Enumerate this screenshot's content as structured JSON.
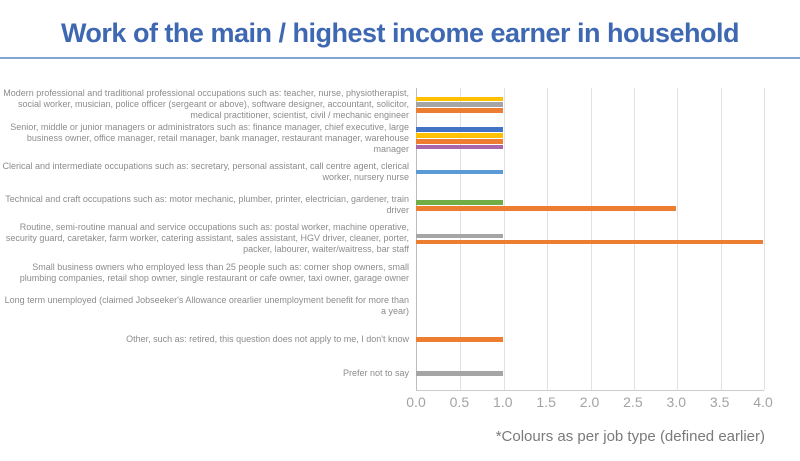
{
  "title": {
    "text": "Work of the main / highest income earner in household"
  },
  "footnote": "*Colours as per job type (defined earlier)",
  "palette": {
    "gold": "#FFC000",
    "gray": "#A5A5A5",
    "orange": "#ED7D31",
    "blue": "#4472C4",
    "purple": "#A767A8",
    "light_blue": "#5B9BD5",
    "green": "#70AD47"
  },
  "theme": {
    "title_color": "#3E68B1",
    "underline_color": "#82A5D6",
    "label_color": "#8C8C8C",
    "tick_color": "#A3A3A3",
    "gridline_color": "#E1E1E1",
    "footnote_color": "#7A7A7A"
  },
  "chart_data": {
    "type": "bar",
    "orientation": "horizontal",
    "title": "Work of the main / highest income earner in household",
    "xlabel": "",
    "ylabel": "",
    "xlim": [
      0,
      4
    ],
    "x_tick_labels": [
      "0.0",
      "0.5",
      "1.0",
      "1.5",
      "2.0",
      "2.5",
      "3.0",
      "3.5",
      "4.0"
    ],
    "grid": true,
    "legend": "none",
    "footnote": "*Colours as per job type (defined earlier)",
    "categories": [
      "Modern professional and traditional professional occupations such as: teacher, nurse, physiotherapist, social worker, musician, police officer (sergeant or above), software designer, accountant, solicitor, medical practitioner, scientist, civil / mechanic engineer",
      "Senior, middle or junior managers or administrators such as: finance manager, chief executive, large business owner, office manager, retail manager, bank manager, restaurant manager, warehouse manager",
      "Clerical and intermediate occupations such as: secretary, personal assistant, call centre agent, clerical worker, nursery nurse",
      "Technical and craft occupations such as: motor mechanic, plumber, printer, electrician, gardener, train driver",
      "Routine, semi-routine manual and service occupations such as: postal worker, machine operative, security guard, caretaker, farm worker, catering assistant, sales assistant, HGV driver, cleaner, porter, packer, labourer, waiter/waitress, bar staff",
      "Small business owners who employed less than 25 people such as: corner shop owners, small plumbing companies, retail shop owner, single restaurant or cafe owner, taxi owner, garage owner",
      "Long term unemployed (claimed Jobseeker's Allowance orearlier unemployment benefit for more than a year)",
      "Other, such as: retired, this question does not apply to me, I don't know",
      "Prefer not to say"
    ],
    "rows": [
      {
        "category_index": 0,
        "bars": [
          {
            "color_name": "gold",
            "value": 1.0
          },
          {
            "color_name": "gray",
            "value": 1.0
          },
          {
            "color_name": "orange",
            "value": 1.0
          }
        ]
      },
      {
        "category_index": 1,
        "bars": [
          {
            "color_name": "blue",
            "value": 1.0
          },
          {
            "color_name": "gold",
            "value": 1.0
          },
          {
            "color_name": "orange",
            "value": 1.0
          },
          {
            "color_name": "purple",
            "value": 1.0
          }
        ]
      },
      {
        "category_index": 2,
        "bars": [
          {
            "color_name": "light_blue",
            "value": 1.0
          }
        ]
      },
      {
        "category_index": 3,
        "bars": [
          {
            "color_name": "green",
            "value": 1.0
          },
          {
            "color_name": "orange",
            "value": 3.0
          }
        ]
      },
      {
        "category_index": 4,
        "bars": [
          {
            "color_name": "gray",
            "value": 1.0
          },
          {
            "color_name": "orange",
            "value": 4.0
          }
        ]
      },
      {
        "category_index": 5,
        "bars": []
      },
      {
        "category_index": 6,
        "bars": []
      },
      {
        "category_index": 7,
        "bars": [
          {
            "color_name": "orange",
            "value": 1.0
          }
        ]
      },
      {
        "category_index": 8,
        "bars": [
          {
            "color_name": "gray",
            "value": 1.0
          }
        ]
      }
    ]
  }
}
